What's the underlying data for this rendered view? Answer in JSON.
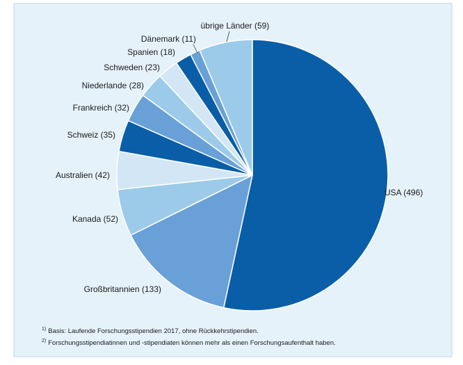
{
  "chart_data": {
    "type": "pie",
    "categories": [
      "USA (496)",
      "Großbritannien (133)",
      "Kanada (52)",
      "Australien (42)",
      "Schweiz (35)",
      "Frankreich (32)",
      "Niederlande (28)",
      "Schweden (23)",
      "Spanien (18)",
      "Dänemark (11)",
      "übrige Länder (59)"
    ],
    "values": [
      496,
      133,
      52,
      42,
      35,
      32,
      28,
      23,
      18,
      11,
      59
    ],
    "colors": [
      "#0a5ea8",
      "#6aa0d8",
      "#9ccbea",
      "#d3e6f6",
      "#0a5ea8",
      "#6aa0d8",
      "#9ccbea",
      "#d3e6f6",
      "#0a5ea8",
      "#6aa0d8",
      "#9ccbea"
    ],
    "footnotes": [
      {
        "marker": "1)",
        "text": "Basis: Laufende Forschungsstipendien 2017, ohne Rückkehrstipendien."
      },
      {
        "marker": "2)",
        "text": "Forschungsstipendiatinnen und -stipendiaten können mehr als einen Forschungsaufenthalt haben."
      }
    ]
  }
}
